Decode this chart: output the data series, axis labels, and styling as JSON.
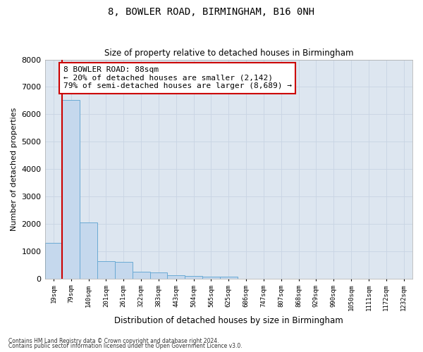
{
  "title1": "8, BOWLER ROAD, BIRMINGHAM, B16 0NH",
  "title2": "Size of property relative to detached houses in Birmingham",
  "xlabel": "Distribution of detached houses by size in Birmingham",
  "ylabel": "Number of detached properties",
  "bin_labels": [
    "19sqm",
    "79sqm",
    "140sqm",
    "201sqm",
    "261sqm",
    "322sqm",
    "383sqm",
    "443sqm",
    "504sqm",
    "565sqm",
    "625sqm",
    "686sqm",
    "747sqm",
    "807sqm",
    "868sqm",
    "929sqm",
    "990sqm",
    "1050sqm",
    "1111sqm",
    "1172sqm",
    "1232sqm"
  ],
  "bar_values": [
    1300,
    6520,
    2060,
    650,
    620,
    250,
    230,
    120,
    100,
    80,
    80,
    0,
    0,
    0,
    0,
    0,
    0,
    0,
    0,
    0,
    0
  ],
  "bar_color": "#c5d8ed",
  "bar_edge_color": "#6aaad4",
  "annotation_text": "8 BOWLER ROAD: 88sqm\n← 20% of detached houses are smaller (2,142)\n79% of semi-detached houses are larger (8,689) →",
  "annotation_box_color": "#ffffff",
  "annotation_box_edge": "#cc0000",
  "vline_color": "#cc0000",
  "ylim": [
    0,
    8000
  ],
  "yticks": [
    0,
    1000,
    2000,
    3000,
    4000,
    5000,
    6000,
    7000,
    8000
  ],
  "grid_color": "#c8d4e4",
  "bg_color": "#dde6f0",
  "footer1": "Contains HM Land Registry data © Crown copyright and database right 2024.",
  "footer2": "Contains public sector information licensed under the Open Government Licence v3.0."
}
